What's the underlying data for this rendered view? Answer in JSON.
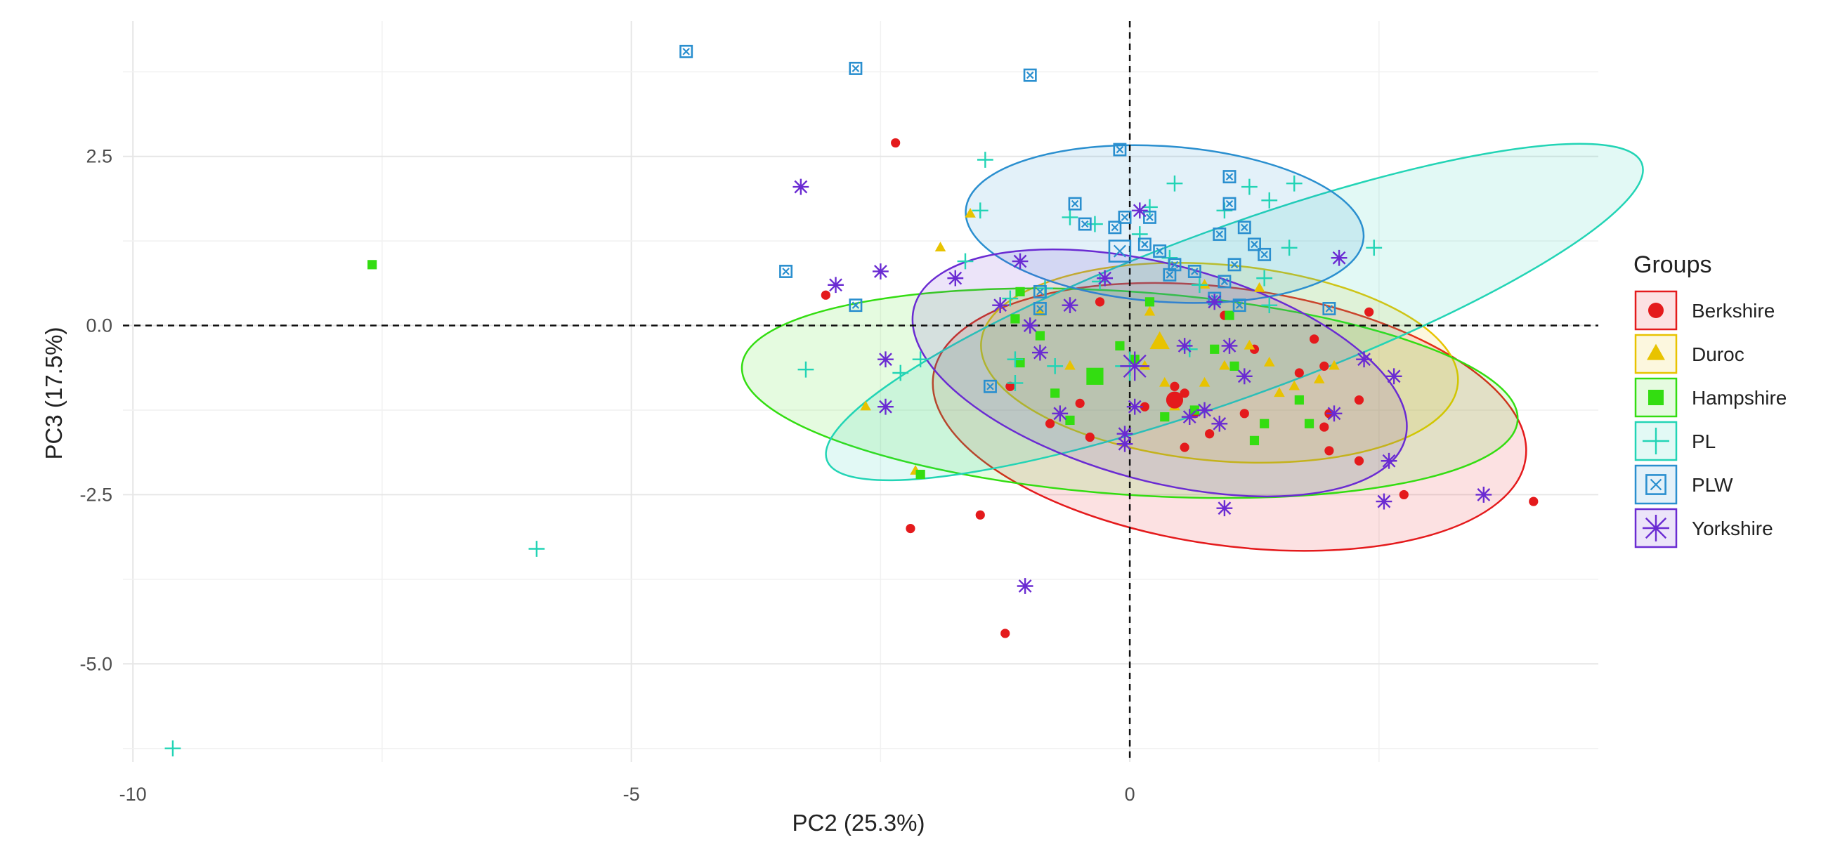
{
  "chart_data": {
    "type": "scatter",
    "title": "",
    "xlabel": "PC2 (25.3%)",
    "ylabel": "PC3 (17.5%)",
    "xlim": [
      -10.1,
      4.7
    ],
    "ylim": [
      -6.45,
      4.5
    ],
    "x_ticks": [
      -10,
      -5,
      0
    ],
    "x_tick_labels": [
      "-10",
      "-5",
      "0"
    ],
    "y_ticks": [
      2.5,
      0,
      -2.5,
      -5
    ],
    "y_tick_labels": [
      "2.5",
      "0.0",
      "-2.5",
      "-5.0"
    ],
    "reference_lines": {
      "x": 0,
      "y": 0,
      "style": "dashed"
    },
    "grid": true,
    "legend": {
      "title": "Groups",
      "position": "right"
    },
    "series": [
      {
        "name": "Berkshire",
        "color": "#e41a1c",
        "shape": "circle",
        "centroid": [
          0.45,
          -1.1
        ],
        "ellipse": {
          "cx": 1.0,
          "cy": -1.35,
          "rx": 3.0,
          "ry": 1.9,
          "angle_deg": -8
        },
        "points": [
          [
            -2.35,
            2.7
          ],
          [
            -3.05,
            0.45
          ],
          [
            -2.2,
            -3.0
          ],
          [
            -1.5,
            -2.8
          ],
          [
            -1.25,
            -4.55
          ],
          [
            -1.2,
            -0.9
          ],
          [
            -0.8,
            -1.45
          ],
          [
            -0.5,
            -1.15
          ],
          [
            -0.4,
            -1.65
          ],
          [
            0.15,
            -1.2
          ],
          [
            0.45,
            -0.9
          ],
          [
            0.55,
            -1.0
          ],
          [
            0.65,
            -1.3
          ],
          [
            0.8,
            -1.6
          ],
          [
            0.55,
            -1.8
          ],
          [
            1.15,
            -1.3
          ],
          [
            1.25,
            -0.35
          ],
          [
            1.95,
            -1.5
          ],
          [
            1.7,
            -0.7
          ],
          [
            1.85,
            -0.2
          ],
          [
            1.95,
            -0.6
          ],
          [
            2.0,
            -1.3
          ],
          [
            2.0,
            -1.85
          ],
          [
            2.3,
            -1.1
          ],
          [
            2.4,
            0.2
          ],
          [
            2.3,
            -2.0
          ],
          [
            2.75,
            -2.5
          ],
          [
            4.05,
            -2.6
          ],
          [
            -0.3,
            0.35
          ],
          [
            0.95,
            0.15
          ]
        ]
      },
      {
        "name": "Duroc",
        "color": "#e8c300",
        "shape": "triangle",
        "centroid": [
          0.3,
          -0.25
        ],
        "ellipse": {
          "cx": 0.9,
          "cy": -0.55,
          "rx": 2.4,
          "ry": 1.45,
          "angle_deg": -5
        },
        "points": [
          [
            -1.6,
            1.65
          ],
          [
            -1.9,
            1.15
          ],
          [
            -2.65,
            -1.2
          ],
          [
            -2.15,
            -2.15
          ],
          [
            -0.9,
            0.2
          ],
          [
            -0.6,
            -0.6
          ],
          [
            0.15,
            -0.6
          ],
          [
            0.35,
            -0.85
          ],
          [
            0.45,
            -1.2
          ],
          [
            0.75,
            -0.85
          ],
          [
            0.95,
            -0.6
          ],
          [
            1.2,
            -0.3
          ],
          [
            1.4,
            -0.55
          ],
          [
            1.5,
            -1.0
          ],
          [
            1.65,
            -0.9
          ],
          [
            1.9,
            -0.8
          ],
          [
            2.05,
            -0.6
          ],
          [
            1.3,
            0.55
          ],
          [
            0.75,
            0.6
          ],
          [
            0.2,
            0.2
          ]
        ]
      },
      {
        "name": "Hampshire",
        "color": "#33dd11",
        "shape": "square",
        "centroid": [
          -0.35,
          -0.75
        ],
        "ellipse": {
          "cx": 0.0,
          "cy": -1.0,
          "rx": 3.9,
          "ry": 1.5,
          "angle_deg": -4
        },
        "points": [
          [
            -7.6,
            0.9
          ],
          [
            -2.1,
            -2.2
          ],
          [
            -1.1,
            0.5
          ],
          [
            -1.15,
            0.1
          ],
          [
            -0.9,
            -0.15
          ],
          [
            -0.75,
            -1.0
          ],
          [
            -0.6,
            -1.4
          ],
          [
            -0.1,
            -0.3
          ],
          [
            0.05,
            -0.5
          ],
          [
            0.35,
            -1.35
          ],
          [
            0.65,
            -1.25
          ],
          [
            0.85,
            -0.35
          ],
          [
            1.0,
            0.15
          ],
          [
            1.05,
            -0.6
          ],
          [
            1.25,
            -1.7
          ],
          [
            1.35,
            -1.45
          ],
          [
            1.7,
            -1.1
          ],
          [
            1.8,
            -1.45
          ],
          [
            -1.1,
            -0.55
          ],
          [
            0.2,
            0.35
          ]
        ]
      },
      {
        "name": "PL",
        "color": "#22d4b5",
        "shape": "plus",
        "centroid": [
          0.0,
          -0.6
        ],
        "ellipse": {
          "cx": 1.05,
          "cy": 0.2,
          "rx": 4.35,
          "ry": 1.25,
          "angle_deg": 20
        },
        "points": [
          [
            -9.6,
            -6.25
          ],
          [
            -5.95,
            -3.3
          ],
          [
            -3.25,
            -0.65
          ],
          [
            -2.3,
            -0.7
          ],
          [
            -2.1,
            -0.5
          ],
          [
            -1.45,
            2.45
          ],
          [
            -1.5,
            1.7
          ],
          [
            -1.65,
            0.95
          ],
          [
            -1.2,
            0.4
          ],
          [
            -1.15,
            -0.5
          ],
          [
            -1.15,
            -0.85
          ],
          [
            -0.85,
            0.55
          ],
          [
            -0.75,
            -0.6
          ],
          [
            -0.6,
            1.6
          ],
          [
            -0.35,
            1.5
          ],
          [
            -0.3,
            0.65
          ],
          [
            0.1,
            1.35
          ],
          [
            0.2,
            1.75
          ],
          [
            0.4,
            1.0
          ],
          [
            0.45,
            2.1
          ],
          [
            0.7,
            0.6
          ],
          [
            0.95,
            1.7
          ],
          [
            1.2,
            2.05
          ],
          [
            1.4,
            1.85
          ],
          [
            1.65,
            2.1
          ],
          [
            1.6,
            1.15
          ],
          [
            1.35,
            0.7
          ],
          [
            1.4,
            0.3
          ],
          [
            2.45,
            1.15
          ],
          [
            0.6,
            -0.35
          ]
        ]
      },
      {
        "name": "PLW",
        "color": "#2a8fcf",
        "shape": "square-cross",
        "centroid": [
          -0.1,
          1.1
        ],
        "ellipse": {
          "cx": 0.35,
          "cy": 1.5,
          "rx": 2.0,
          "ry": 1.15,
          "angle_deg": -4
        },
        "points": [
          [
            -4.45,
            4.05
          ],
          [
            -2.75,
            3.8
          ],
          [
            -1.0,
            3.7
          ],
          [
            -3.45,
            0.8
          ],
          [
            -2.75,
            0.3
          ],
          [
            -1.4,
            -0.9
          ],
          [
            -0.9,
            0.5
          ],
          [
            -0.9,
            0.25
          ],
          [
            -0.55,
            1.8
          ],
          [
            -0.45,
            1.5
          ],
          [
            -0.1,
            2.6
          ],
          [
            -0.05,
            1.6
          ],
          [
            0.15,
            1.2
          ],
          [
            0.2,
            1.6
          ],
          [
            0.3,
            1.1
          ],
          [
            0.45,
            0.9
          ],
          [
            0.65,
            0.8
          ],
          [
            0.85,
            0.4
          ],
          [
            0.9,
            1.35
          ],
          [
            1.0,
            1.8
          ],
          [
            1.0,
            2.2
          ],
          [
            1.15,
            1.45
          ],
          [
            1.25,
            1.2
          ],
          [
            1.35,
            1.05
          ],
          [
            0.95,
            0.65
          ],
          [
            1.05,
            0.9
          ],
          [
            1.1,
            0.3
          ],
          [
            2.0,
            0.25
          ],
          [
            -0.15,
            1.45
          ],
          [
            0.4,
            0.75
          ]
        ]
      },
      {
        "name": "Yorkshire",
        "color": "#6a2bd2",
        "shape": "asterisk",
        "centroid": [
          0.05,
          -0.6
        ],
        "ellipse": {
          "cx": 0.3,
          "cy": -0.7,
          "rx": 2.55,
          "ry": 1.6,
          "angle_deg": -15
        },
        "points": [
          [
            -3.3,
            2.05
          ],
          [
            -2.5,
            0.8
          ],
          [
            -2.95,
            0.6
          ],
          [
            -2.45,
            -0.5
          ],
          [
            -2.45,
            -1.2
          ],
          [
            -1.75,
            0.7
          ],
          [
            -1.3,
            0.3
          ],
          [
            -1.1,
            0.95
          ],
          [
            -1.0,
            0.0
          ],
          [
            -0.9,
            -0.4
          ],
          [
            -0.7,
            -1.3
          ],
          [
            -0.6,
            0.3
          ],
          [
            -0.25,
            0.7
          ],
          [
            -0.05,
            -1.6
          ],
          [
            -0.05,
            -1.75
          ],
          [
            0.05,
            -1.2
          ],
          [
            0.1,
            1.7
          ],
          [
            0.55,
            -0.3
          ],
          [
            0.6,
            -1.35
          ],
          [
            0.75,
            -1.25
          ],
          [
            0.9,
            -1.45
          ],
          [
            0.85,
            0.35
          ],
          [
            0.95,
            -2.7
          ],
          [
            1.0,
            -0.3
          ],
          [
            1.15,
            -0.75
          ],
          [
            2.05,
            -1.3
          ],
          [
            2.35,
            -0.5
          ],
          [
            2.65,
            -0.75
          ],
          [
            2.6,
            -2.0
          ],
          [
            2.55,
            -2.6
          ],
          [
            3.55,
            -2.5
          ],
          [
            2.1,
            1.0
          ],
          [
            -1.05,
            -3.85
          ]
        ]
      }
    ]
  }
}
